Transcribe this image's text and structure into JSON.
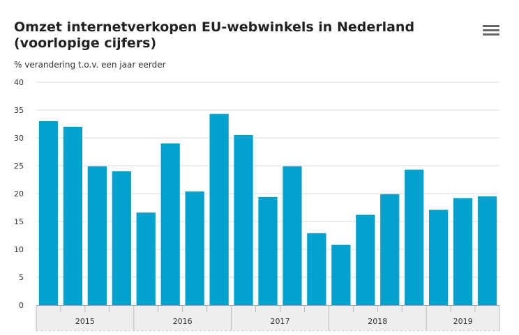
{
  "header": {
    "title": "Omzet internetverkopen EU-webwinkels in Nederland (voorlopige cijfers)",
    "subtitle": "% verandering t.o.v. een jaar eerder",
    "menu_icon": "hamburger-menu-icon"
  },
  "chart_data": {
    "type": "bar",
    "title": "Omzet internetverkopen EU-webwinkels in Nederland (voorlopige cijfers)",
    "subtitle": "% verandering t.o.v. een jaar eerder",
    "ylim": [
      0,
      40
    ],
    "yticks": [
      0,
      5,
      10,
      15,
      20,
      25,
      30,
      35,
      40
    ],
    "groups": [
      {
        "label": "2015",
        "count": 4
      },
      {
        "label": "2016",
        "count": 4
      },
      {
        "label": "2017",
        "count": 4
      },
      {
        "label": "2018",
        "count": 4
      },
      {
        "label": "2019",
        "count": 3
      }
    ],
    "values": [
      33,
      32,
      24.9,
      24,
      16.6,
      29,
      20.4,
      34.3,
      30.5,
      19.4,
      24.9,
      12.9,
      10.8,
      16.2,
      19.9,
      24.3,
      17.1,
      19.2,
      19.5
    ],
    "bar_color": "#00a1cd",
    "grid": true,
    "legend": "none"
  }
}
